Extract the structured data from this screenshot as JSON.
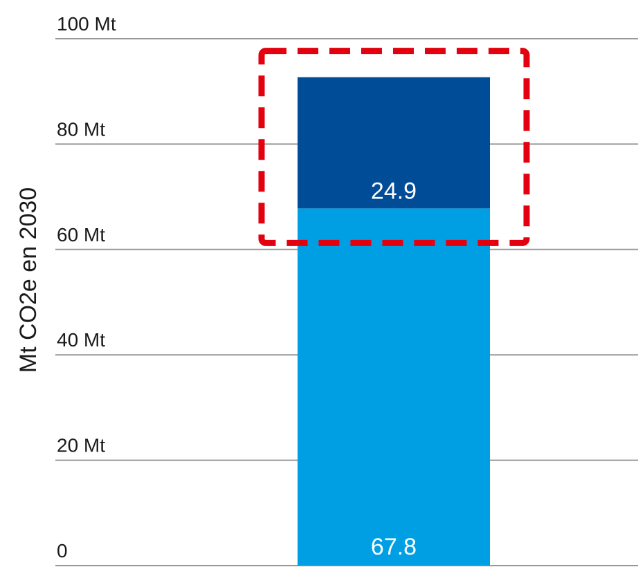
{
  "chart_data": {
    "type": "bar",
    "stacked": true,
    "categories": [
      ""
    ],
    "series": [
      {
        "values": [
          67.8
        ],
        "color": "#009fe3"
      },
      {
        "values": [
          24.9
        ],
        "color": "#004c97"
      }
    ],
    "data_labels": [
      "67.8",
      "24.9"
    ],
    "ylabel": "Mt CO2e en 2030",
    "ylim": [
      0,
      100
    ],
    "yticks": [
      0,
      20,
      40,
      60,
      80,
      100
    ],
    "ytick_labels": [
      "0",
      "20 Mt",
      "40 Mt",
      "60 Mt",
      "80 Mt",
      "100 Mt"
    ],
    "grid": true,
    "grid_color": "#999999",
    "label_color": "#ffffff",
    "highlight": {
      "style": "dashed-box",
      "color": "#e3000f",
      "target_series": 1
    }
  }
}
